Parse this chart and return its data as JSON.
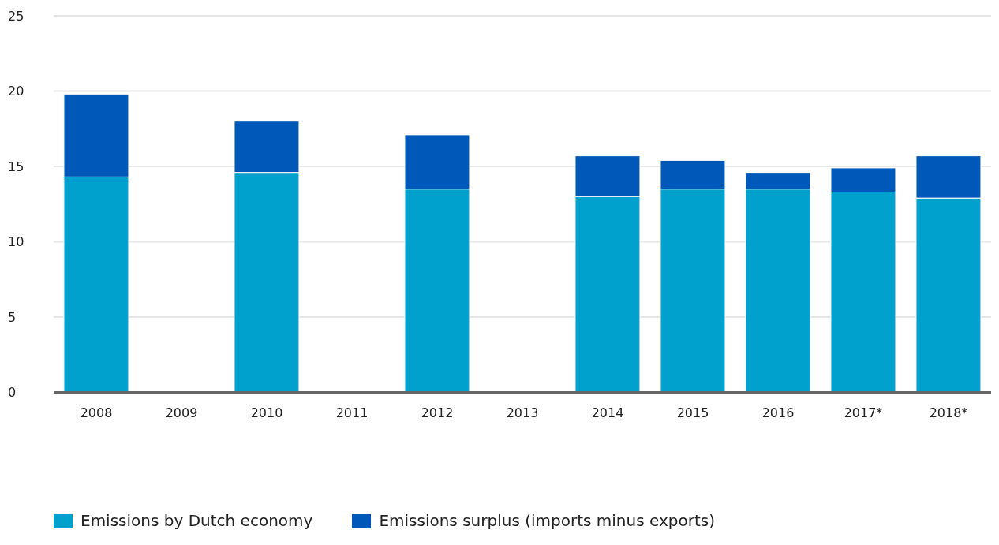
{
  "chart_data": {
    "type": "bar",
    "stacked": true,
    "categories": [
      "2008",
      "2009",
      "2010",
      "2011",
      "2012",
      "2013",
      "2014",
      "2015",
      "2016",
      "2017*",
      "2018*"
    ],
    "series": [
      {
        "name": "Emissions by Dutch economy",
        "color": "#00a1cd",
        "values": [
          14.3,
          null,
          14.6,
          null,
          13.5,
          null,
          13.0,
          13.5,
          13.5,
          13.3,
          12.9
        ]
      },
      {
        "name": "Emissions surplus (imports minus exports)",
        "color": "#0058b8",
        "values": [
          5.5,
          null,
          3.4,
          null,
          3.6,
          null,
          2.7,
          1.9,
          1.1,
          1.6,
          2.8
        ]
      }
    ],
    "ylim": [
      0,
      25
    ],
    "yticks": [
      0,
      5,
      10,
      15,
      20,
      25
    ],
    "grid": "y",
    "legend": "bottom"
  }
}
